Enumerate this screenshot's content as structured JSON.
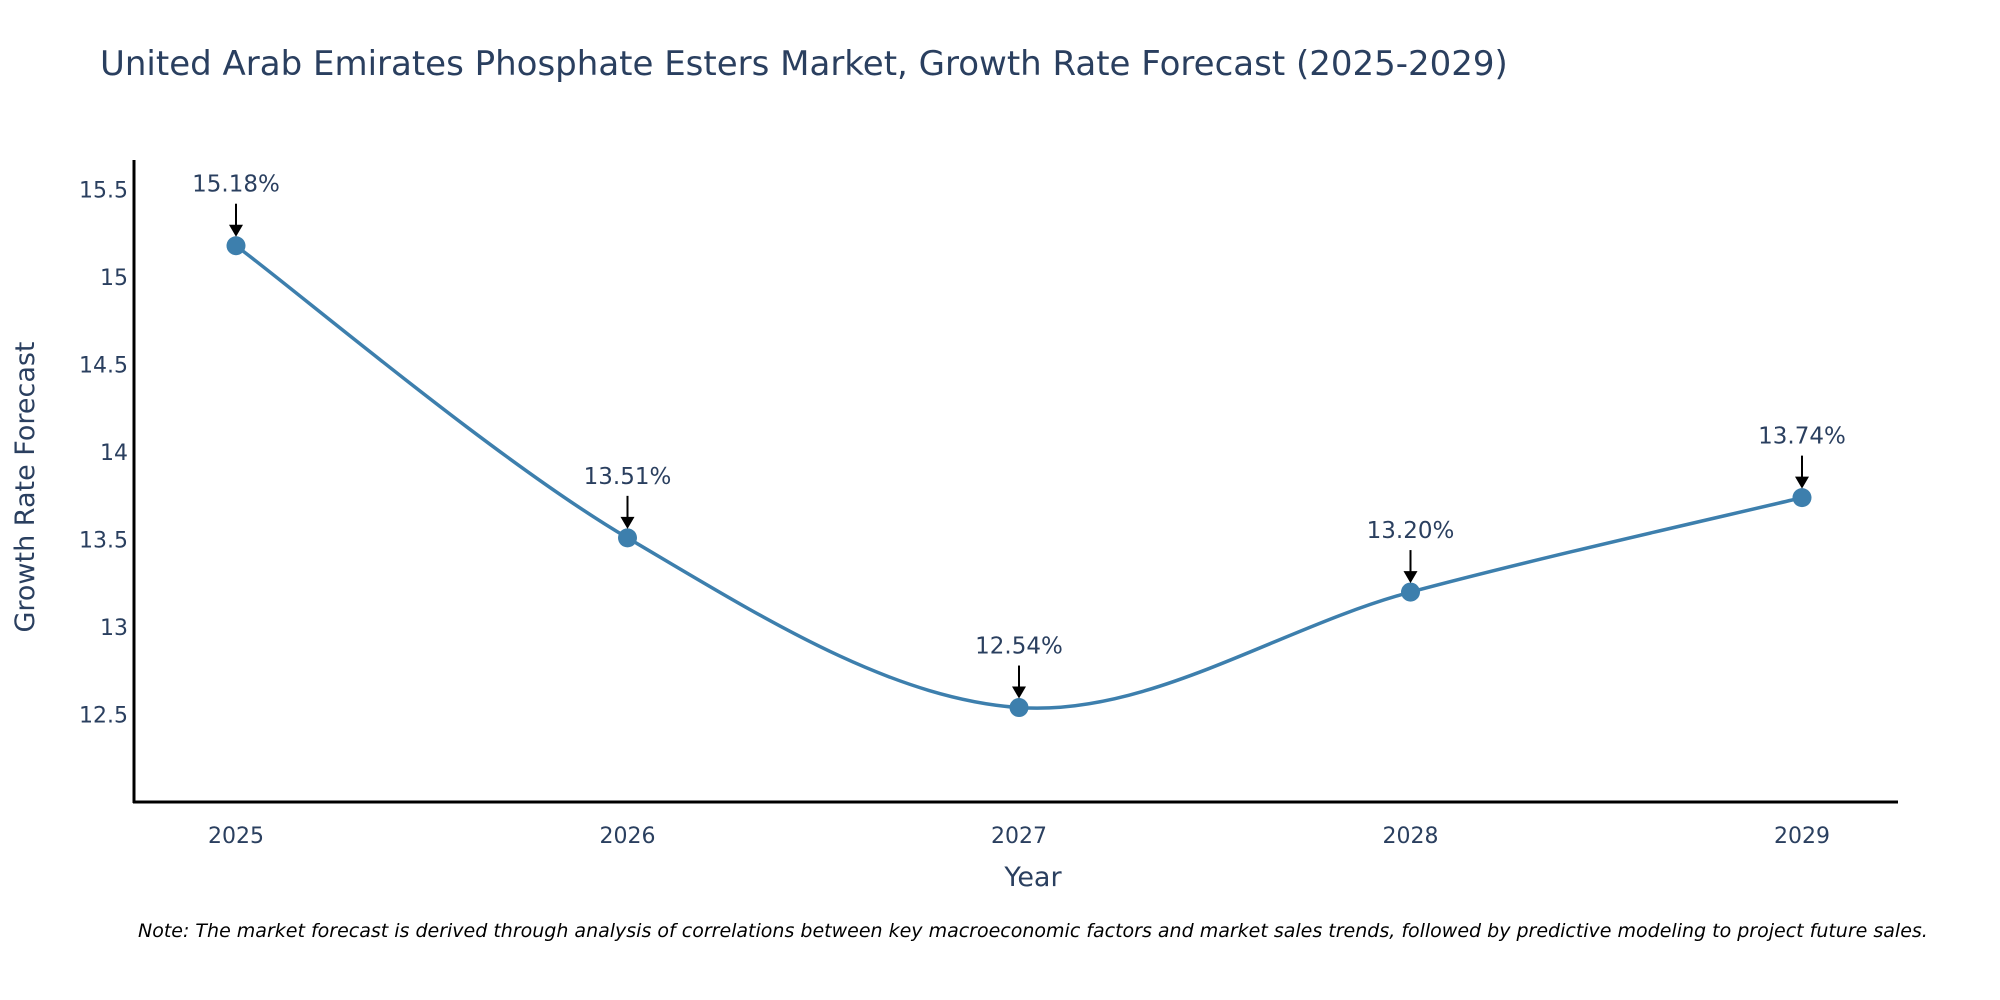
{
  "chart_data": {
    "type": "line",
    "title": "United Arab Emirates Phosphate Esters Market, Growth Rate Forecast (2025-2029)",
    "xlabel": "Year",
    "ylabel": "Growth Rate Forecast",
    "x": [
      "2025",
      "2026",
      "2027",
      "2028",
      "2029"
    ],
    "series": [
      {
        "name": "Growth Rate Forecast",
        "values": [
          15.18,
          13.51,
          12.54,
          13.2,
          13.74
        ],
        "labels": [
          "15.18%",
          "13.51%",
          "12.54%",
          "13.20%",
          "13.74%"
        ]
      }
    ],
    "ylim": [
      12.0,
      15.67
    ],
    "yticks": [
      12.5,
      13,
      13.5,
      14,
      14.5,
      15,
      15.5
    ],
    "ytick_labels": [
      "12.5",
      "13",
      "13.5",
      "14",
      "14.5",
      "15",
      "15.5"
    ],
    "grid": false,
    "line_color": "#3d7fad",
    "marker_color": "#3d7fad",
    "annotation_arrow_color": "#000000"
  },
  "note": "Note: The market forecast is derived through analysis of correlations between key macroeconomic factors and market sales trends, followed by predictive modeling to project future sales."
}
